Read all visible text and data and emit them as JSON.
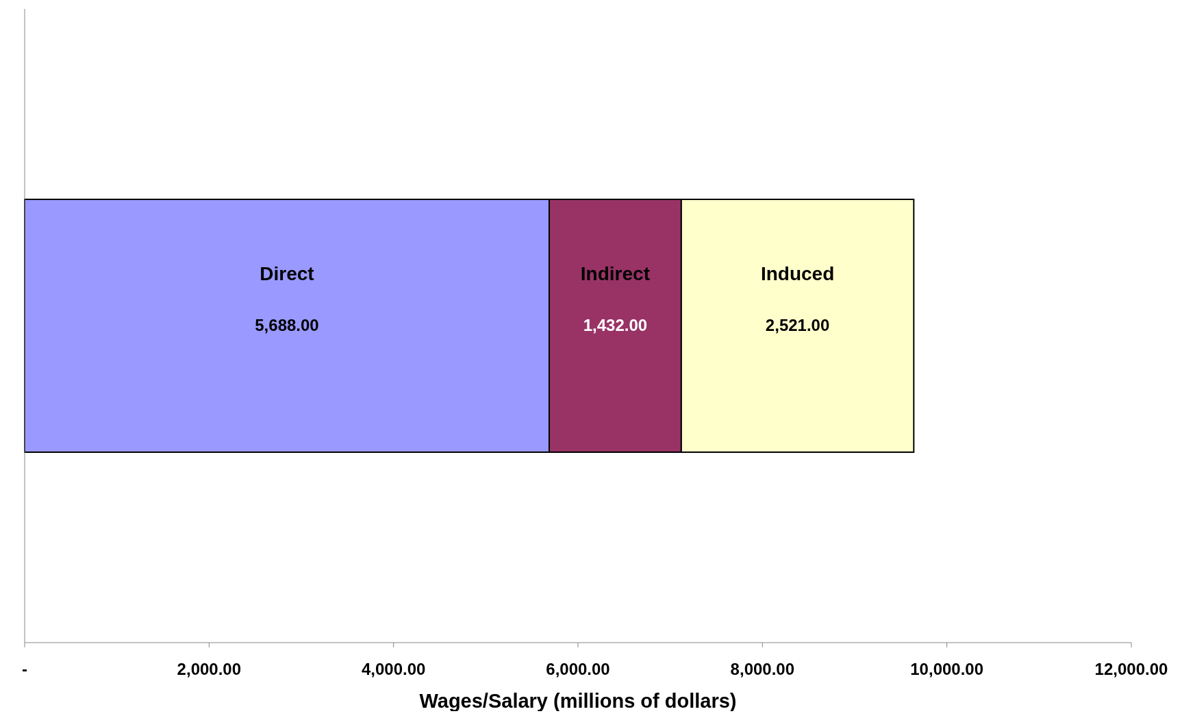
{
  "chart_data": {
    "type": "bar",
    "orientation": "horizontal",
    "stacked": true,
    "xlabel": "Wages/Salary (millions of dollars)",
    "categories": [
      null
    ],
    "series": [
      {
        "name": "Direct",
        "color": "#9999ff",
        "values": [
          5688
        ],
        "value_labels": [
          "5,688.00"
        ]
      },
      {
        "name": "Indirect",
        "color": "#993366",
        "values": [
          1432
        ],
        "value_labels": [
          "1,432.00"
        ]
      },
      {
        "name": "Induced",
        "color": "#ffffcc",
        "values": [
          2521
        ],
        "value_labels": [
          "2,521.00"
        ]
      }
    ],
    "xlim": [
      0,
      12000
    ],
    "xticks": [
      {
        "value": 0,
        "label": "-"
      },
      {
        "value": 2000,
        "label": "2,000.00"
      },
      {
        "value": 4000,
        "label": "4,000.00"
      },
      {
        "value": 6000,
        "label": "6,000.00"
      },
      {
        "value": 8000,
        "label": "8,000.00"
      },
      {
        "value": 10000,
        "label": "10,000.00"
      },
      {
        "value": 12000,
        "label": "12,000.00"
      }
    ],
    "grid": false
  }
}
